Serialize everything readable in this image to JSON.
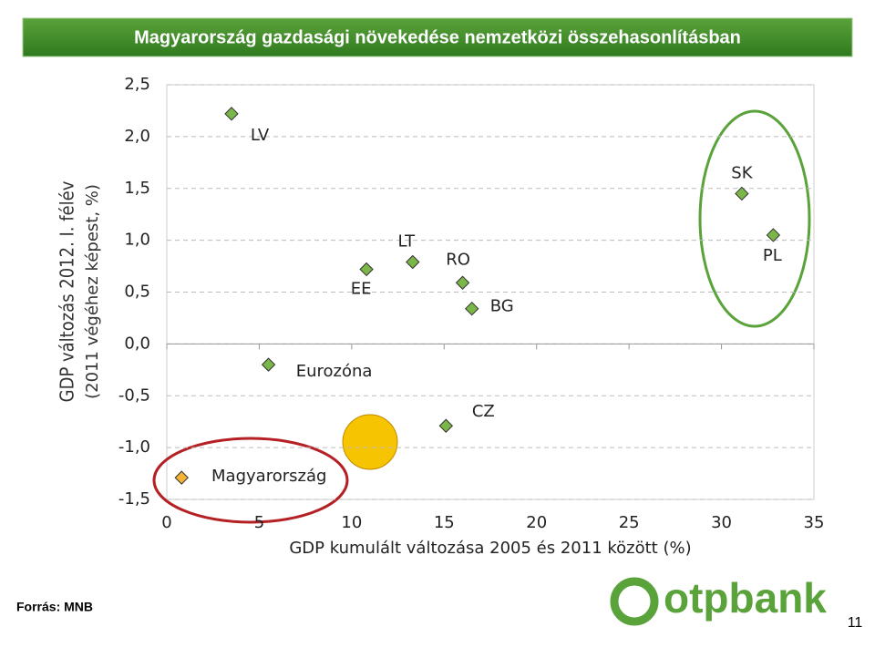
{
  "header": {
    "title": "Magyarország gazdasági növekedése nemzetközi összehasonlításban"
  },
  "chart_data": {
    "type": "scatter",
    "x_label": "GDP kumulált változása 2005 és 2011 között (%)",
    "y_label": [
      "GDP változás 2012. I. félév",
      "(2011 végéhez képest, %)"
    ],
    "labels": [
      "LV",
      "SK",
      "PL",
      "LT",
      "EE",
      "RO",
      "BG",
      "Eurozóna",
      "CZ",
      "Magyarország"
    ],
    "x": [
      3.5,
      31.1,
      32.8,
      13.3,
      10.8,
      16.0,
      16.5,
      5.5,
      15.1,
      0.8
    ],
    "values": [
      2.22,
      1.45,
      1.05,
      0.79,
      0.72,
      0.59,
      0.34,
      -0.2,
      -0.79,
      -1.29
    ],
    "colors": [
      "#7ab648",
      "#7ab648",
      "#7ab648",
      "#7ab648",
      "#7ab648",
      "#7ab648",
      "#7ab648",
      "#7ab648",
      "#7ab648",
      "#f5b335"
    ],
    "xlim": [
      0,
      35
    ],
    "xticks": [
      0,
      5,
      10,
      15,
      20,
      25,
      30,
      35
    ],
    "ylim": [
      -1.5,
      2.5
    ],
    "yticks": [
      {
        "value": -1.5,
        "label": "-1,5"
      },
      {
        "value": -1,
        "label": "-1,0"
      },
      {
        "value": -0.5,
        "label": "-0,5"
      },
      {
        "value": 0,
        "label": "0,0"
      },
      {
        "value": 0.5,
        "label": "0,5"
      },
      {
        "value": 1,
        "label": "1,0"
      },
      {
        "value": 1.5,
        "label": "1,5"
      },
      {
        "value": 2,
        "label": "2,0"
      },
      {
        "value": 2.5,
        "label": "2,5"
      }
    ],
    "grid": true
  },
  "footer": {
    "source": "Forrás: MNB",
    "logo": "otpbank",
    "page": "11"
  }
}
